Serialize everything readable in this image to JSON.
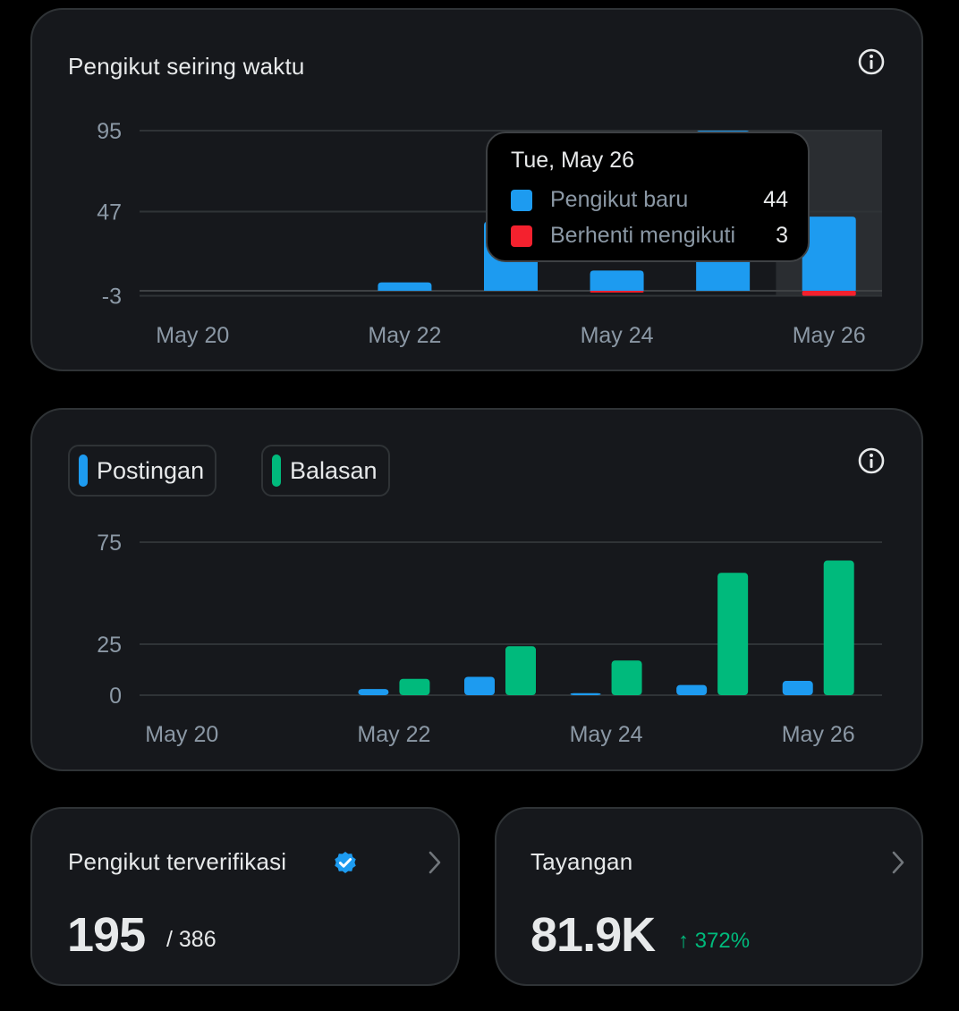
{
  "followers_card": {
    "title": "Pengikut seiring waktu",
    "icon": "info-icon"
  },
  "posts_card": {
    "icon": "info-icon",
    "legend": [
      {
        "label": "Postingan",
        "color": "#1d9bf0"
      },
      {
        "label": "Balasan",
        "color": "#00ba7c"
      }
    ]
  },
  "tooltip": {
    "date": "Tue, May 26",
    "rows": [
      {
        "label": "Pengikut baru",
        "value": "44",
        "color": "#1d9bf0"
      },
      {
        "label": "Berhenti mengikuti",
        "value": "3",
        "color": "#f4212e"
      }
    ]
  },
  "verified_card": {
    "title": "Pengikut terverifikasi",
    "value": "195",
    "total": "/ 386",
    "icon": "verified-badge-icon"
  },
  "views_card": {
    "title": "Tayangan",
    "value": "81.9K",
    "change": "↑ 372%"
  },
  "chart_data": [
    {
      "type": "bar",
      "categories": [
        "May 20",
        "May 21",
        "May 22",
        "May 23",
        "May 24",
        "May 25",
        "May 26"
      ],
      "x_tick_labels": [
        "May 20",
        "May 22",
        "May 24",
        "May 26"
      ],
      "y_ticks": [
        -3,
        47,
        95
      ],
      "ylim": [
        -3,
        95
      ],
      "series": [
        {
          "name": "Pengikut baru",
          "color": "#1d9bf0",
          "values": [
            0,
            0,
            5,
            41,
            12,
            95,
            44
          ]
        },
        {
          "name": "Berhenti mengikuti",
          "color": "#f4212e",
          "values": [
            0,
            0,
            0,
            0,
            1,
            0,
            3
          ]
        }
      ],
      "highlighted_category": "May 26",
      "grid": true
    },
    {
      "type": "bar",
      "categories": [
        "May 20",
        "May 21",
        "May 22",
        "May 23",
        "May 24",
        "May 25",
        "May 26"
      ],
      "x_tick_labels": [
        "May 20",
        "May 22",
        "May 24",
        "May 26"
      ],
      "y_ticks": [
        0,
        25,
        75
      ],
      "ylim": [
        0,
        75
      ],
      "series": [
        {
          "name": "Postingan",
          "color": "#1d9bf0",
          "values": [
            0,
            0,
            3,
            9,
            1,
            5,
            7
          ]
        },
        {
          "name": "Balasan",
          "color": "#00ba7c",
          "values": [
            0,
            0,
            8,
            24,
            17,
            60,
            66
          ]
        }
      ],
      "grid": true
    }
  ]
}
